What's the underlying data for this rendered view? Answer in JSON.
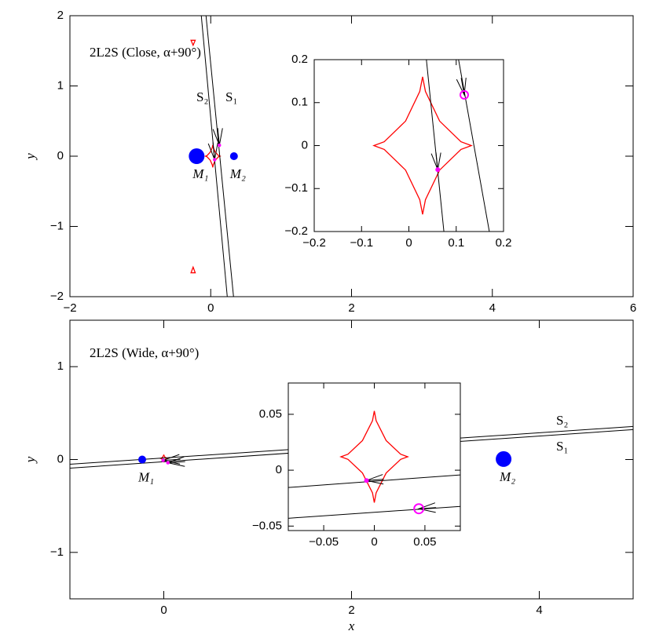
{
  "chart_data": [
    {
      "type": "lens-plane",
      "annotation": "2L2S (Close, α+90°)",
      "ylabel": "y",
      "xlim": [
        -2,
        6
      ],
      "ylim": [
        -2,
        2
      ],
      "xticks": [
        {
          "value": -2,
          "label": "−2"
        },
        0,
        2,
        4,
        6
      ],
      "yticks": [
        {
          "value": -2,
          "label": "−2"
        },
        {
          "value": -1,
          "label": "−1"
        },
        0,
        1,
        2
      ],
      "line_color": "#000000",
      "caustic_color": "#ff0000",
      "lens_color": "#0000ff",
      "source_color": "#ff00ff",
      "trajectories": [
        {
          "name": "S₂",
          "x": [
            -0.134,
            0.235
          ],
          "y": [
            2,
            -2
          ]
        },
        {
          "name": "S₁",
          "x": [
            -0.067,
            0.324
          ],
          "y": [
            2,
            -2
          ]
        }
      ],
      "caustics": [
        {
          "x": [
            0.132,
            0.11,
            0.065,
            0.035,
            0.029,
            0.023,
            -0.007,
            -0.052,
            -0.074,
            -0.052,
            -0.007,
            0.023,
            0.029,
            0.035,
            0.065,
            0.11
          ],
          "y": [
            0,
            0.009,
            0.057,
            0.126,
            0.16,
            0.126,
            0.057,
            0.009,
            0,
            -0.009,
            -0.057,
            -0.126,
            -0.16,
            -0.126,
            -0.057,
            -0.009
          ]
        },
        {
          "x": [
            -0.28,
            -0.22,
            -0.25
          ],
          "y": [
            1.65,
            1.65,
            1.58
          ]
        },
        {
          "x": [
            -0.25,
            -0.28,
            -0.22
          ],
          "y": [
            -1.58,
            -1.66,
            -1.66
          ]
        }
      ],
      "lenses": {
        "names": [
          "M₁",
          "M₂"
        ],
        "x": [
          -0.2,
          0.33
        ],
        "y": [
          0,
          0
        ]
      },
      "sources": {
        "x": [
          0.055,
          0.123
        ],
        "y": [
          -0.05,
          0.156
        ],
        "markers": [
          "filled",
          "filled"
        ]
      }
    },
    {
      "type": "lens-plane",
      "xlim": [
        -0.2,
        0.2
      ],
      "ylim": [
        -0.2,
        0.2
      ],
      "xticks": [
        {
          "value": -0.2,
          "label": "−0.2"
        },
        {
          "value": -0.1,
          "label": "−0.1"
        },
        0,
        0.1,
        0.2
      ],
      "yticks": [
        {
          "value": -0.2,
          "label": "−0.2"
        },
        {
          "value": -0.1,
          "label": "−0.1"
        },
        0,
        0.1,
        0.2
      ],
      "line_color": "#000000",
      "caustic_color": "#ff0000",
      "source_color": "#ff00ff",
      "trajectories": [
        {
          "x": [
            0.037,
            0.074
          ],
          "y": [
            0.2,
            -0.2
          ]
        },
        {
          "x": [
            0.105,
            0.17
          ],
          "y": [
            0.2,
            -0.2
          ]
        }
      ],
      "caustics": [
        {
          "x": [
            0.132,
            0.11,
            0.065,
            0.035,
            0.029,
            0.023,
            -0.007,
            -0.052,
            -0.074,
            -0.052,
            -0.007,
            0.023,
            0.029,
            0.035,
            0.065,
            0.11
          ],
          "y": [
            0,
            0.009,
            0.057,
            0.126,
            0.16,
            0.126,
            0.057,
            0.009,
            0,
            -0.009,
            -0.057,
            -0.126,
            -0.16,
            -0.126,
            -0.057,
            -0.009
          ]
        }
      ],
      "sources": {
        "x": [
          0.061,
          0.117
        ],
        "y": [
          -0.056,
          0.118
        ],
        "markers": [
          "filled",
          "open"
        ]
      }
    },
    {
      "type": "lens-plane",
      "annotation": "2L2S (Wide, α+90°)",
      "xlabel": "x",
      "ylabel": "y",
      "xlim": [
        -1,
        5
      ],
      "ylim": [
        -1.5,
        1.5
      ],
      "xticks": [
        0,
        2,
        4
      ],
      "yticks": [
        {
          "value": -1,
          "label": "−1"
        },
        0,
        1
      ],
      "line_color": "#000000",
      "caustic_color": "#ff0000",
      "lens_color": "#0000ff",
      "source_color": "#ff00ff",
      "trajectories": [
        {
          "name": "S₂",
          "x": [
            5,
            -1
          ],
          "y": [
            0.356,
            -0.051
          ]
        },
        {
          "name": "S₁",
          "x": [
            5,
            -1
          ],
          "y": [
            0.322,
            -0.093
          ]
        }
      ],
      "caustics": [
        {
          "x": [
            0.033,
            0.026,
            0.0117,
            0.0018,
            0,
            -0.0018,
            -0.0117,
            -0.026,
            -0.033,
            -0.026,
            -0.0117,
            -0.0018,
            0,
            0.0018,
            0.0117,
            0.026
          ],
          "y": [
            0.012,
            0.0143,
            0.0265,
            0.0443,
            0.053,
            0.0443,
            0.0265,
            0.0143,
            0.012,
            0.0097,
            -0.0025,
            -0.0203,
            -0.029,
            -0.0203,
            -0.0025,
            0.0097
          ]
        },
        {
          "x": [
            3.61,
            3.63,
            3.62
          ],
          "y": [
            0,
            0,
            0.02
          ]
        }
      ],
      "lenses": {
        "names": [
          "M₁",
          "M₂"
        ],
        "x": [
          -0.23,
          3.62
        ],
        "y": [
          0,
          0.005
        ]
      },
      "sources": {
        "x": [
          -0.0077,
          0.044
        ],
        "y": [
          -0.0092,
          -0.0345
        ],
        "markers": [
          "filled",
          "filled"
        ]
      }
    },
    {
      "type": "lens-plane",
      "xlim": [
        -0.085,
        0.085
      ],
      "ylim": [
        -0.054,
        0.078
      ],
      "xticks": [
        {
          "value": -0.05,
          "label": "−0.05"
        },
        0,
        0.05
      ],
      "yticks": [
        {
          "value": -0.05,
          "label": "−0.05"
        },
        0,
        0.05
      ],
      "line_color": "#000000",
      "caustic_color": "#ff0000",
      "source_color": "#ff00ff",
      "trajectories": [
        {
          "x": [
            0.085,
            -0.085
          ],
          "y": [
            -0.0042,
            -0.0155
          ]
        },
        {
          "x": [
            0.085,
            -0.085
          ],
          "y": [
            -0.0324,
            -0.043
          ]
        }
      ],
      "caustics": [
        {
          "x": [
            0.033,
            0.026,
            0.0117,
            0.0018,
            0,
            -0.0018,
            -0.0117,
            -0.026,
            -0.033,
            -0.026,
            -0.0117,
            -0.0018,
            0,
            0.0018,
            0.0117,
            0.026
          ],
          "y": [
            0.012,
            0.0143,
            0.0265,
            0.0443,
            0.053,
            0.0443,
            0.0265,
            0.0143,
            0.012,
            0.0097,
            -0.0025,
            -0.0203,
            -0.029,
            -0.0203,
            -0.0025,
            0.0097
          ]
        }
      ],
      "sources": {
        "x": [
          -0.0077,
          0.044
        ],
        "y": [
          -0.0092,
          -0.0345
        ],
        "markers": [
          "filled",
          "open"
        ]
      }
    }
  ]
}
